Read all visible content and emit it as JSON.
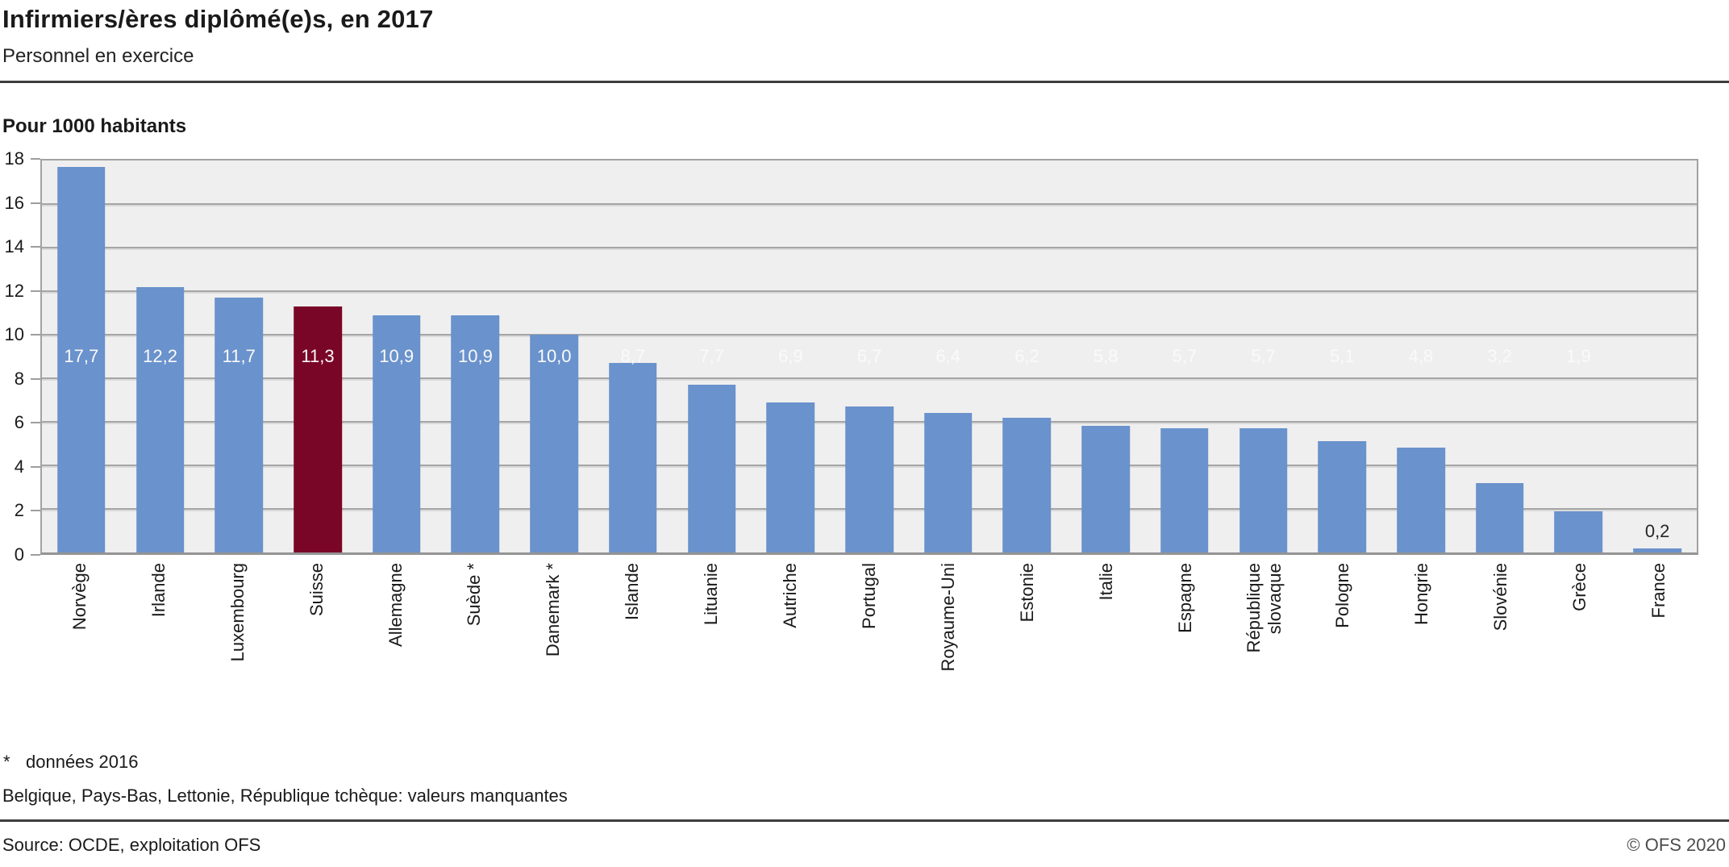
{
  "header": {
    "title": "Infirmiers/ères diplômé(e)s, en 2017",
    "subtitle": "Personnel en exercice"
  },
  "chart_data": {
    "type": "bar",
    "title": "Pour 1000 habitants",
    "categories": [
      "Norvège",
      "Irlande",
      "Luxembourg",
      "Suisse",
      "Allemagne",
      "Suède *",
      "Danemark *",
      "Islande",
      "Lituanie",
      "Autriche",
      "Portugal",
      "Royaume-Uni",
      "Estonie",
      "Italie",
      "Espagne",
      "République\nslovaque",
      "Pologne",
      "Hongrie",
      "Slovénie",
      "Grèce",
      "France"
    ],
    "values": [
      17.7,
      12.2,
      11.7,
      11.3,
      10.9,
      10.9,
      10.0,
      8.7,
      7.7,
      6.9,
      6.7,
      6.4,
      6.2,
      5.8,
      5.7,
      5.7,
      5.1,
      4.8,
      3.2,
      1.9,
      0.2
    ],
    "value_labels": [
      "17,7",
      "12,2",
      "11,7",
      "11,3",
      "10,9",
      "10,9",
      "10,0",
      "8,7",
      "7,7",
      "6,9",
      "6,7",
      "6,4",
      "6,2",
      "5,8",
      "5,7",
      "5,7",
      "5,1",
      "4,8",
      "3,2",
      "1,9",
      "0,2"
    ],
    "highlight_index": 3,
    "highlight_category": "Suisse",
    "ylim": [
      0,
      18
    ],
    "yticks": [
      0,
      2,
      4,
      6,
      8,
      10,
      12,
      14,
      16,
      18
    ],
    "grid": true,
    "legend": "none",
    "colors": {
      "bar": "#6a92cc",
      "highlight": "#7a0627",
      "plot_background": "#efefef",
      "gridline": "#a5a5a5",
      "value_label_inside": "#fafafa",
      "value_label_outside": "#262626"
    }
  },
  "footnotes": {
    "marker": "*",
    "note1": "données 2016",
    "note2": "Belgique, Pays-Bas, Lettonie, République tchèque: valeurs manquantes"
  },
  "footer": {
    "source": "Source: OCDE, exploitation OFS",
    "copyright": "© OFS 2020"
  }
}
